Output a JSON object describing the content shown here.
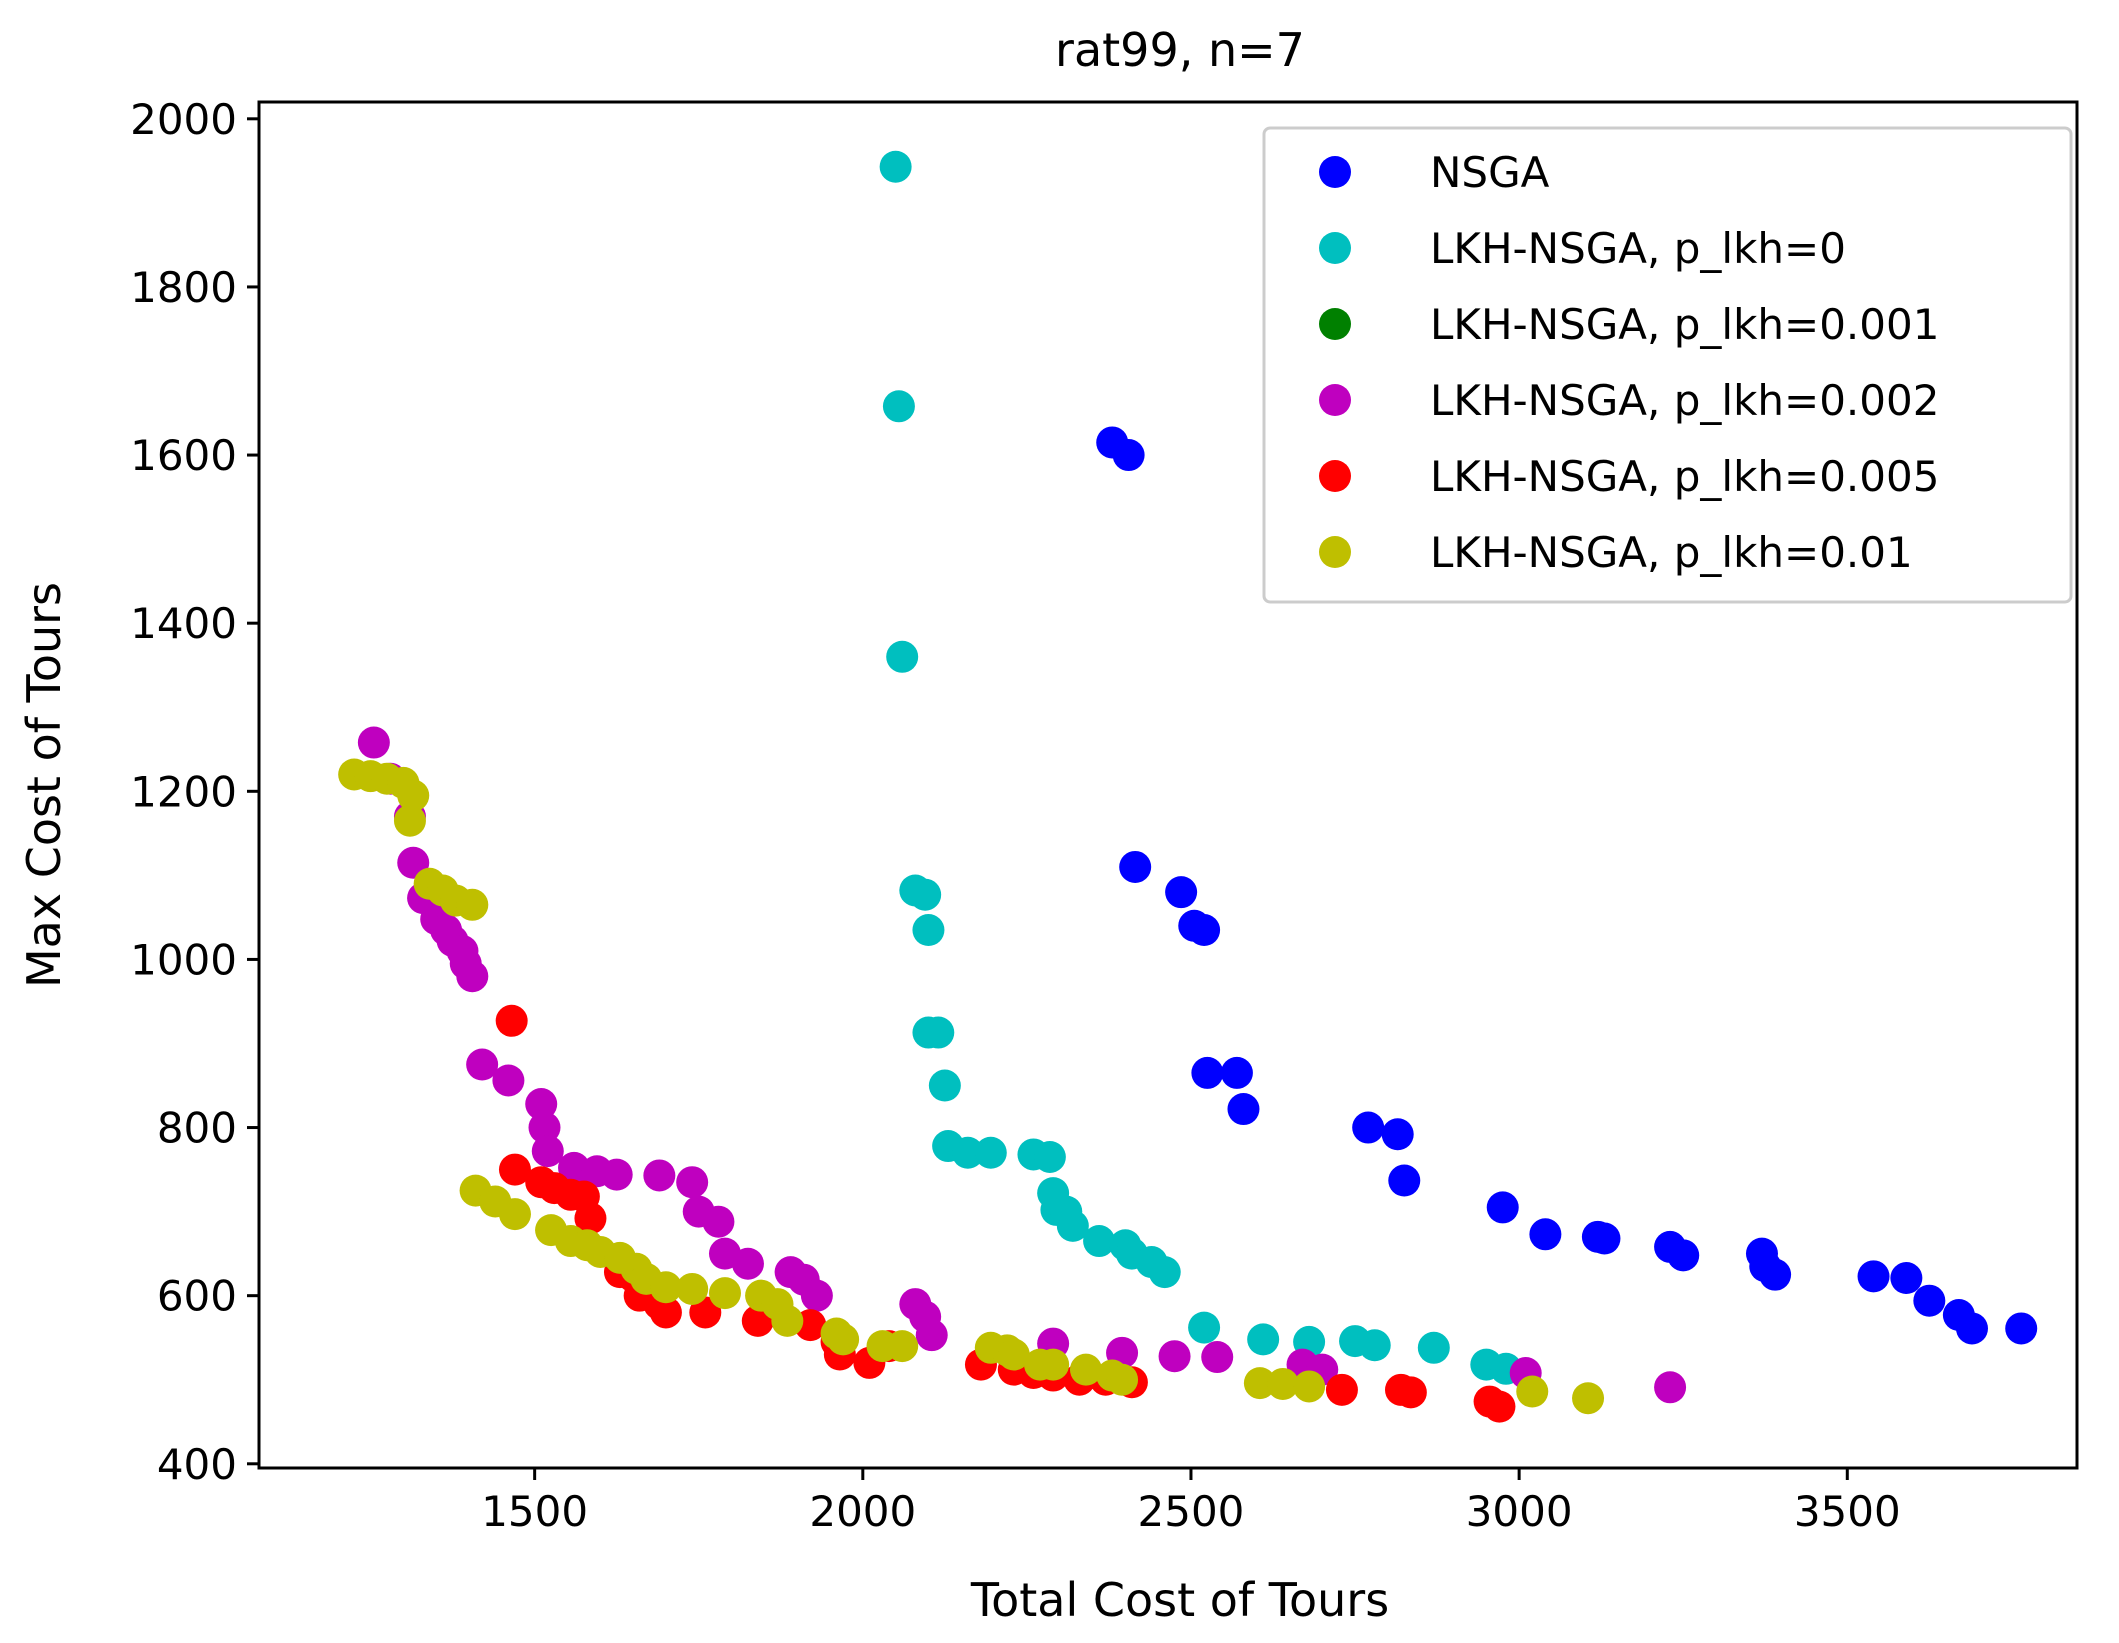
{
  "chart_data": {
    "type": "scatter",
    "title": "rat99, n=7",
    "xlabel": "Total Cost of Tours",
    "ylabel": "Max Cost of Tours",
    "xlim": [
      1080,
      3850
    ],
    "ylim": [
      395,
      2020
    ],
    "xticks": [
      1500,
      2000,
      2500,
      3000,
      3500
    ],
    "yticks": [
      400,
      600,
      800,
      1000,
      1200,
      1400,
      1600,
      1800,
      2000
    ],
    "grid": false,
    "legend_position": "top-right",
    "series": [
      {
        "name": "NSGA",
        "color": "#0000ff",
        "points": [
          [
            2380,
            1615
          ],
          [
            2405,
            1600
          ],
          [
            2415,
            1110
          ],
          [
            2485,
            1080
          ],
          [
            2505,
            1040
          ],
          [
            2520,
            1035
          ],
          [
            2525,
            865
          ],
          [
            2570,
            865
          ],
          [
            2580,
            822
          ],
          [
            2770,
            800
          ],
          [
            2815,
            792
          ],
          [
            2825,
            737
          ],
          [
            2975,
            705
          ],
          [
            3040,
            673
          ],
          [
            3120,
            670
          ],
          [
            3130,
            668
          ],
          [
            3230,
            658
          ],
          [
            3250,
            648
          ],
          [
            3370,
            650
          ],
          [
            3375,
            635
          ],
          [
            3390,
            625
          ],
          [
            3540,
            623
          ],
          [
            3590,
            621
          ],
          [
            3625,
            594
          ],
          [
            3670,
            577
          ],
          [
            3690,
            561
          ],
          [
            3765,
            561
          ]
        ]
      },
      {
        "name": "LKH-NSGA, p_lkh=0",
        "color": "#00bfbf",
        "points": [
          [
            2050,
            1943
          ],
          [
            2055,
            1658
          ],
          [
            2060,
            1360
          ],
          [
            2080,
            1082
          ],
          [
            2095,
            1077
          ],
          [
            2100,
            1035
          ],
          [
            2100,
            913
          ],
          [
            2115,
            913
          ],
          [
            2125,
            850
          ],
          [
            2130,
            778
          ],
          [
            2160,
            770
          ],
          [
            2195,
            770
          ],
          [
            2260,
            768
          ],
          [
            2285,
            765
          ],
          [
            2290,
            722
          ],
          [
            2295,
            702
          ],
          [
            2310,
            700
          ],
          [
            2320,
            683
          ],
          [
            2360,
            665
          ],
          [
            2400,
            660
          ],
          [
            2410,
            650
          ],
          [
            2440,
            640
          ],
          [
            2460,
            628
          ],
          [
            2520,
            562
          ],
          [
            2610,
            548
          ],
          [
            2680,
            545
          ],
          [
            2750,
            546
          ],
          [
            2780,
            541
          ],
          [
            2870,
            538
          ],
          [
            2950,
            518
          ],
          [
            2980,
            513
          ]
        ]
      },
      {
        "name": "LKH-NSGA, p_lkh=0.001",
        "color": "#008000",
        "points": []
      },
      {
        "name": "LKH-NSGA, p_lkh=0.002",
        "color": "#bf00bf",
        "points": [
          [
            1255,
            1258
          ],
          [
            1280,
            1215
          ],
          [
            1310,
            1170
          ],
          [
            1315,
            1115
          ],
          [
            1330,
            1073
          ],
          [
            1350,
            1048
          ],
          [
            1365,
            1035
          ],
          [
            1375,
            1022
          ],
          [
            1390,
            1010
          ],
          [
            1395,
            995
          ],
          [
            1405,
            980
          ],
          [
            1420,
            875
          ],
          [
            1460,
            856
          ],
          [
            1510,
            828
          ],
          [
            1515,
            800
          ],
          [
            1520,
            772
          ],
          [
            1560,
            752
          ],
          [
            1595,
            748
          ],
          [
            1625,
            744
          ],
          [
            1690,
            743
          ],
          [
            1740,
            735
          ],
          [
            1750,
            700
          ],
          [
            1780,
            688
          ],
          [
            1790,
            650
          ],
          [
            1825,
            638
          ],
          [
            1890,
            628
          ],
          [
            1910,
            619
          ],
          [
            1930,
            600
          ],
          [
            2080,
            590
          ],
          [
            2095,
            575
          ],
          [
            2105,
            553
          ],
          [
            2290,
            543
          ],
          [
            2395,
            532
          ],
          [
            2475,
            528
          ],
          [
            2540,
            527
          ],
          [
            2670,
            518
          ],
          [
            2700,
            512
          ],
          [
            3010,
            508
          ],
          [
            3230,
            491
          ]
        ]
      },
      {
        "name": "LKH-NSGA, p_lkh=0.005",
        "color": "#ff0000",
        "points": [
          [
            1465,
            927
          ],
          [
            1470,
            750
          ],
          [
            1510,
            735
          ],
          [
            1530,
            728
          ],
          [
            1555,
            720
          ],
          [
            1575,
            718
          ],
          [
            1585,
            692
          ],
          [
            1630,
            628
          ],
          [
            1650,
            623
          ],
          [
            1660,
            600
          ],
          [
            1690,
            590
          ],
          [
            1700,
            580
          ],
          [
            1760,
            580
          ],
          [
            1840,
            570
          ],
          [
            1920,
            565
          ],
          [
            1960,
            545
          ],
          [
            1965,
            530
          ],
          [
            2010,
            520
          ],
          [
            2040,
            540
          ],
          [
            2180,
            518
          ],
          [
            2230,
            512
          ],
          [
            2260,
            508
          ],
          [
            2290,
            505
          ],
          [
            2330,
            500
          ],
          [
            2370,
            500
          ],
          [
            2410,
            497
          ],
          [
            2730,
            488
          ],
          [
            2820,
            488
          ],
          [
            2835,
            485
          ],
          [
            2955,
            474
          ],
          [
            2970,
            468
          ]
        ]
      },
      {
        "name": "LKH-NSGA, p_lkh=0.01",
        "color": "#bfbf00",
        "points": [
          [
            1225,
            1220
          ],
          [
            1250,
            1218
          ],
          [
            1275,
            1215
          ],
          [
            1300,
            1210
          ],
          [
            1315,
            1195
          ],
          [
            1310,
            1165
          ],
          [
            1340,
            1090
          ],
          [
            1360,
            1082
          ],
          [
            1380,
            1070
          ],
          [
            1405,
            1065
          ],
          [
            1410,
            725
          ],
          [
            1440,
            712
          ],
          [
            1470,
            697
          ],
          [
            1525,
            678
          ],
          [
            1555,
            665
          ],
          [
            1580,
            660
          ],
          [
            1600,
            652
          ],
          [
            1630,
            645
          ],
          [
            1655,
            632
          ],
          [
            1670,
            620
          ],
          [
            1700,
            610
          ],
          [
            1740,
            608
          ],
          [
            1790,
            603
          ],
          [
            1845,
            600
          ],
          [
            1870,
            590
          ],
          [
            1885,
            570
          ],
          [
            1960,
            555
          ],
          [
            1970,
            548
          ],
          [
            2030,
            540
          ],
          [
            2060,
            540
          ],
          [
            2195,
            538
          ],
          [
            2220,
            535
          ],
          [
            2230,
            530
          ],
          [
            2270,
            518
          ],
          [
            2290,
            518
          ],
          [
            2340,
            512
          ],
          [
            2380,
            505
          ],
          [
            2395,
            500
          ],
          [
            2605,
            496
          ],
          [
            2640,
            495
          ],
          [
            2680,
            492
          ],
          [
            3020,
            486
          ],
          [
            3105,
            478
          ]
        ]
      }
    ]
  }
}
